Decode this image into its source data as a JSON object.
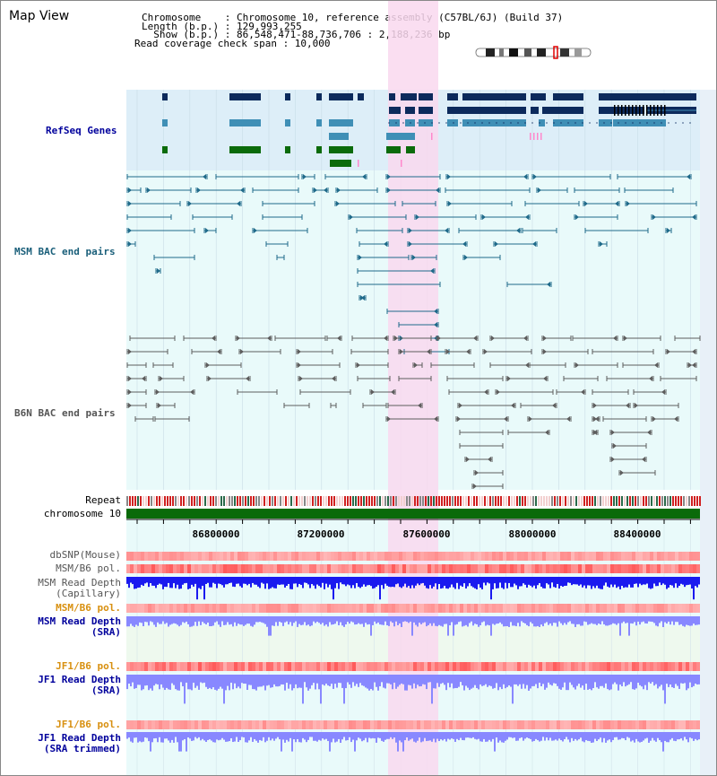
{
  "view_title": "Map View",
  "info": {
    "chromosome_line": "Chromosome    : Chromosome 10, reference assembly (C57BL/6J) (Build 37)",
    "length_line": "Length (b.p.) : 129,993,255",
    "show_line": "  Show (b.p.) : 86,548,471-88,736,706 : 2,188,236 bp",
    "coverage_line": "Read coverage check span : 10,000"
  },
  "tracks": {
    "refseq": "RefSeq Genes",
    "msm_bac": "MSM BAC end pairs",
    "b6n_bac": "B6N BAC end pairs",
    "repeat": "Repeat",
    "chromosome": "chromosome 10",
    "dbsnp": "dbSNP(Mouse)",
    "msm_b6_pol_1": "MSM/B6 pol.",
    "msm_read_cap_1": "MSM Read Depth",
    "msm_read_cap_2": "(Capillary)",
    "msm_b6_pol_2": "MSM/B6 pol.",
    "msm_read_sra_1": "MSM Read Depth",
    "msm_read_sra_2": "(SRA)",
    "jf1_b6_pol_1": "JF1/B6 pol.",
    "jf1_read_sra_1": "JF1 Read Depth",
    "jf1_read_sra_2": "(SRA)",
    "jf1_b6_pol_2": "JF1/B6 pol.",
    "jf1_trim_1": "JF1 Read Depth",
    "jf1_trim_2": "(SRA trimmed)"
  },
  "axis_ticks": [
    "86800000",
    "87200000",
    "87600000",
    "88000000",
    "88400000"
  ],
  "colors": {
    "refseq_bg": "#ddeef8",
    "track_bg": "#e9fafa",
    "highlight": "#f9d8ef",
    "gene_dark": "#0c2a5c",
    "gene_mid": "#3f8fb6",
    "gene_green": "#0b6b0b",
    "msm_bac": "#1f6a8a",
    "b6n_bac": "#5d5d5d",
    "chrom_bar": "#0a6a0a",
    "depth_blue": "#1a1aef",
    "depth_light": "#8888ff",
    "label_navy": "#00009c",
    "label_teal": "#1a5f7a",
    "label_orange": "#d89010"
  }
}
